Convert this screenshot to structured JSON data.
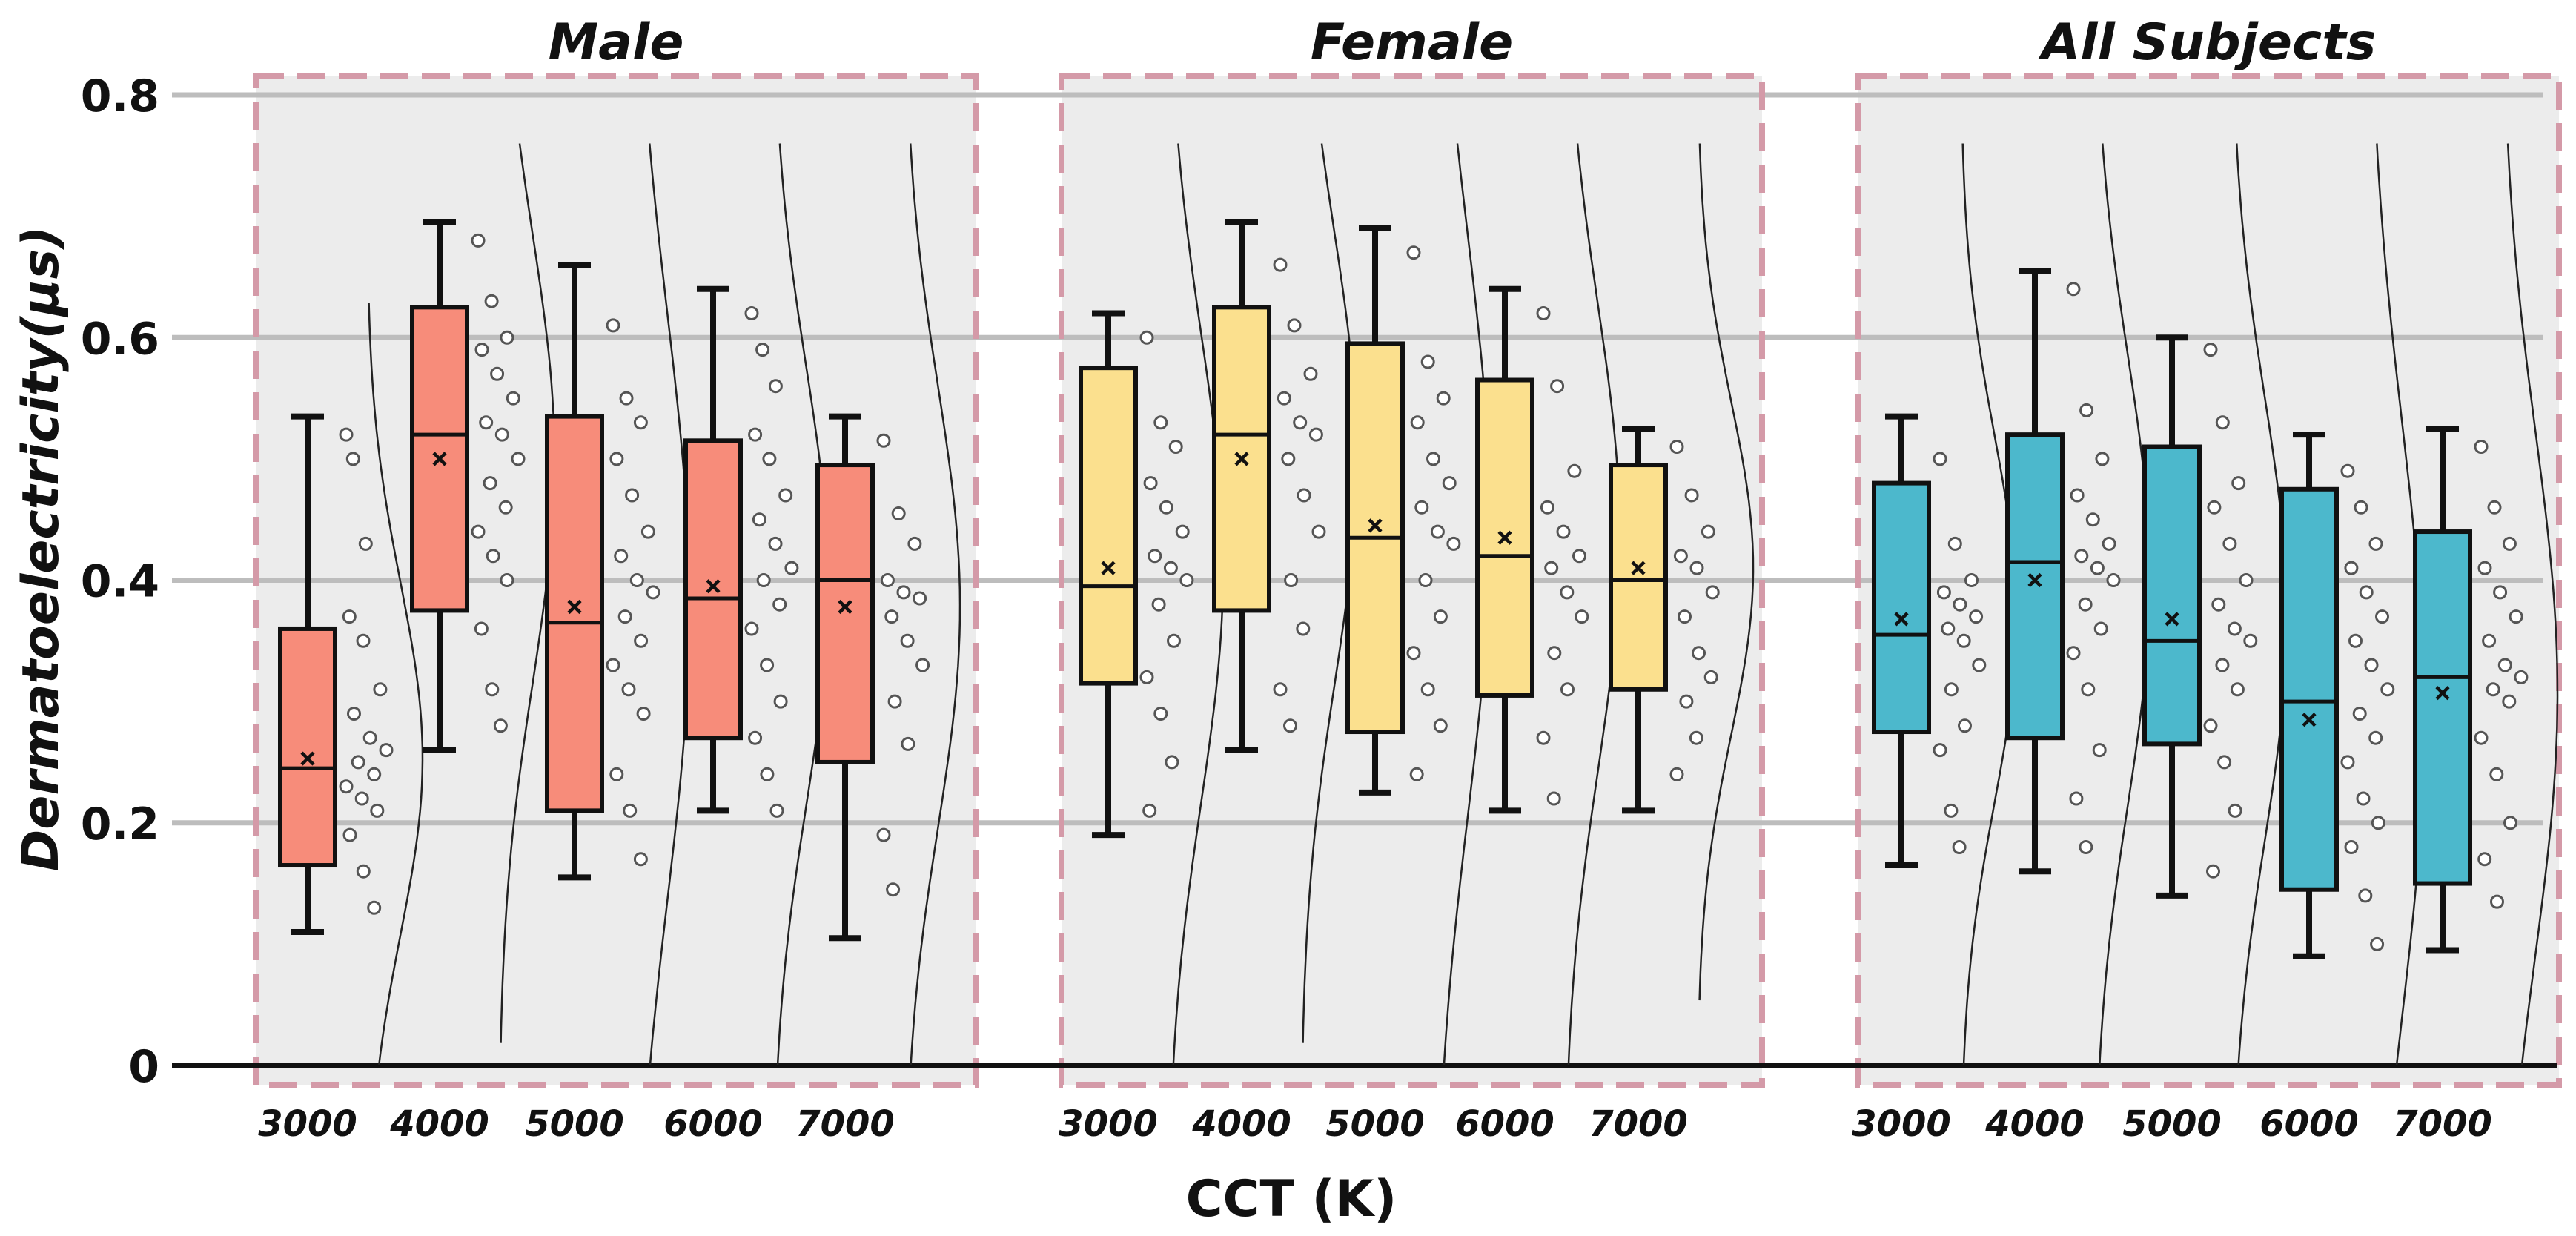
{
  "chart_data": {
    "type": "boxplot",
    "ylabel": "Dermatoelectricity(μs)",
    "xlabel": "CCT (K)",
    "ylim": [
      0,
      0.8
    ],
    "yticks": [
      "0",
      "0.2",
      "0.4",
      "0.6",
      "0.8"
    ],
    "ytick_values": [
      0,
      0.2,
      0.4,
      0.6,
      0.8
    ],
    "grid": true,
    "panels": [
      {
        "title": "Male",
        "color": "#f78c7a",
        "categories": [
          "3000",
          "4000",
          "5000",
          "6000",
          "7000"
        ],
        "boxes": [
          {
            "min": 0.11,
            "q1": 0.165,
            "median": 0.245,
            "q3": 0.36,
            "max": 0.535,
            "mean": 0.253,
            "points": [
              0.52,
              0.5,
              0.43,
              0.37,
              0.35,
              0.31,
              0.29,
              0.27,
              0.26,
              0.25,
              0.24,
              0.23,
              0.22,
              0.21,
              0.19,
              0.16,
              0.13
            ]
          },
          {
            "min": 0.26,
            "q1": 0.375,
            "median": 0.52,
            "q3": 0.625,
            "max": 0.695,
            "mean": 0.5,
            "points": [
              0.68,
              0.63,
              0.6,
              0.59,
              0.57,
              0.55,
              0.53,
              0.52,
              0.5,
              0.48,
              0.46,
              0.44,
              0.42,
              0.4,
              0.36,
              0.31,
              0.28
            ]
          },
          {
            "min": 0.155,
            "q1": 0.21,
            "median": 0.365,
            "q3": 0.535,
            "max": 0.66,
            "mean": 0.378,
            "points": [
              0.61,
              0.55,
              0.53,
              0.5,
              0.47,
              0.44,
              0.42,
              0.4,
              0.39,
              0.37,
              0.35,
              0.33,
              0.31,
              0.29,
              0.24,
              0.21,
              0.17
            ]
          },
          {
            "min": 0.21,
            "q1": 0.27,
            "median": 0.385,
            "q3": 0.515,
            "max": 0.64,
            "mean": 0.395,
            "points": [
              0.62,
              0.59,
              0.56,
              0.52,
              0.5,
              0.47,
              0.45,
              0.43,
              0.41,
              0.4,
              0.38,
              0.36,
              0.33,
              0.3,
              0.27,
              0.24,
              0.21
            ]
          },
          {
            "min": 0.105,
            "q1": 0.25,
            "median": 0.4,
            "q3": 0.495,
            "max": 0.535,
            "mean": 0.378,
            "points": [
              0.515,
              0.455,
              0.43,
              0.4,
              0.39,
              0.385,
              0.37,
              0.35,
              0.33,
              0.3,
              0.265,
              0.19,
              0.145
            ]
          }
        ]
      },
      {
        "title": "Female",
        "color": "#fbe08e",
        "categories": [
          "3000",
          "4000",
          "5000",
          "6000",
          "7000"
        ],
        "boxes": [
          {
            "min": 0.19,
            "q1": 0.315,
            "median": 0.395,
            "q3": 0.575,
            "max": 0.62,
            "mean": 0.41,
            "points": [
              0.6,
              0.53,
              0.51,
              0.48,
              0.46,
              0.44,
              0.42,
              0.41,
              0.4,
              0.38,
              0.35,
              0.32,
              0.29,
              0.25,
              0.21
            ]
          },
          {
            "min": 0.26,
            "q1": 0.375,
            "median": 0.52,
            "q3": 0.625,
            "max": 0.695,
            "mean": 0.5,
            "points": [
              0.66,
              0.61,
              0.57,
              0.55,
              0.53,
              0.52,
              0.5,
              0.47,
              0.44,
              0.4,
              0.36,
              0.31,
              0.28
            ]
          },
          {
            "min": 0.225,
            "q1": 0.275,
            "median": 0.435,
            "q3": 0.595,
            "max": 0.69,
            "mean": 0.445,
            "points": [
              0.67,
              0.58,
              0.55,
              0.53,
              0.5,
              0.48,
              0.46,
              0.44,
              0.43,
              0.4,
              0.37,
              0.34,
              0.31,
              0.28,
              0.24
            ]
          },
          {
            "min": 0.21,
            "q1": 0.305,
            "median": 0.42,
            "q3": 0.565,
            "max": 0.64,
            "mean": 0.435,
            "points": [
              0.62,
              0.56,
              0.49,
              0.46,
              0.44,
              0.42,
              0.41,
              0.39,
              0.37,
              0.34,
              0.31,
              0.27,
              0.22
            ]
          },
          {
            "min": 0.21,
            "q1": 0.31,
            "median": 0.4,
            "q3": 0.495,
            "max": 0.525,
            "mean": 0.41,
            "points": [
              0.51,
              0.47,
              0.44,
              0.42,
              0.41,
              0.39,
              0.37,
              0.34,
              0.32,
              0.3,
              0.27,
              0.24
            ]
          }
        ]
      },
      {
        "title": "All Subjects",
        "color": "#4cb8cc",
        "categories": [
          "3000",
          "4000",
          "5000",
          "6000",
          "7000"
        ],
        "boxes": [
          {
            "min": 0.165,
            "q1": 0.275,
            "median": 0.355,
            "q3": 0.48,
            "max": 0.535,
            "mean": 0.368,
            "points": [
              0.5,
              0.43,
              0.4,
              0.39,
              0.38,
              0.37,
              0.36,
              0.35,
              0.33,
              0.31,
              0.28,
              0.26,
              0.21,
              0.18
            ]
          },
          {
            "min": 0.16,
            "q1": 0.27,
            "median": 0.415,
            "q3": 0.52,
            "max": 0.655,
            "mean": 0.4,
            "points": [
              0.64,
              0.54,
              0.5,
              0.47,
              0.45,
              0.43,
              0.42,
              0.41,
              0.4,
              0.38,
              0.36,
              0.34,
              0.31,
              0.26,
              0.22,
              0.18
            ]
          },
          {
            "min": 0.14,
            "q1": 0.265,
            "median": 0.35,
            "q3": 0.51,
            "max": 0.6,
            "mean": 0.368,
            "points": [
              0.59,
              0.53,
              0.48,
              0.46,
              0.43,
              0.4,
              0.38,
              0.36,
              0.35,
              0.33,
              0.31,
              0.28,
              0.25,
              0.21,
              0.16
            ]
          },
          {
            "min": 0.09,
            "q1": 0.145,
            "median": 0.3,
            "q3": 0.475,
            "max": 0.52,
            "mean": 0.285,
            "points": [
              0.49,
              0.46,
              0.43,
              0.41,
              0.39,
              0.37,
              0.35,
              0.33,
              0.31,
              0.29,
              0.27,
              0.25,
              0.22,
              0.2,
              0.18,
              0.14,
              0.1
            ]
          },
          {
            "min": 0.095,
            "q1": 0.15,
            "median": 0.32,
            "q3": 0.44,
            "max": 0.525,
            "mean": 0.307,
            "points": [
              0.51,
              0.46,
              0.43,
              0.41,
              0.39,
              0.37,
              0.35,
              0.33,
              0.32,
              0.31,
              0.3,
              0.27,
              0.24,
              0.2,
              0.17,
              0.135
            ]
          }
        ]
      }
    ]
  }
}
